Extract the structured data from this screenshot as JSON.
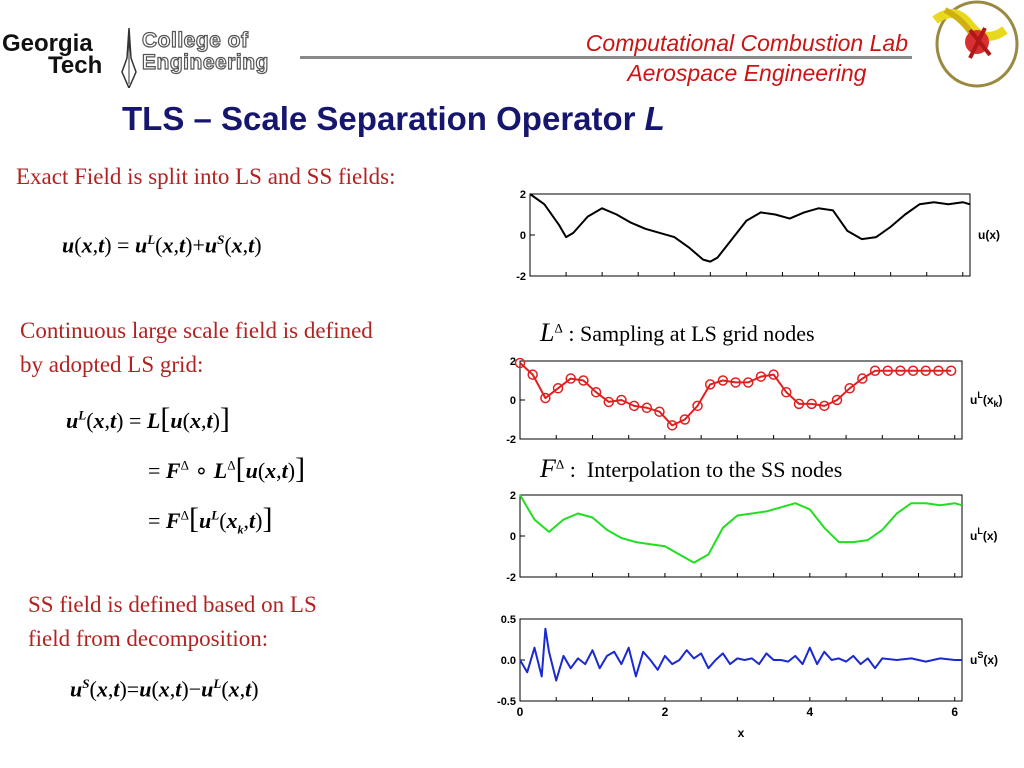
{
  "header": {
    "logo_georgia": "Georgia",
    "logo_tech": "Tech",
    "logo_college": "College of",
    "logo_engineering": "Engineering",
    "lab_line1": "Computational Combustion Lab",
    "lab_line2": "Aerospace Engineering"
  },
  "slide": {
    "title_main": "TLS – Scale Separation Operator ",
    "title_symbol": "L"
  },
  "left": {
    "text1": "Exact Field is split into LS and SS fields:",
    "text2_line1": "Continuous large scale field is defined",
    "text2_line2": "by adopted LS grid:",
    "text3_line1": "SS field is defined based on LS",
    "text3_line2": "field from decomposition:"
  },
  "operators": {
    "sampling_symbol": "L",
    "sampling_delta": "Δ",
    "sampling_label": "Sampling at LS grid nodes",
    "interp_symbol": "F",
    "interp_delta": "Δ",
    "interp_label": "Interpolation to the SS nodes"
  },
  "colors": {
    "red_text": "#b22222",
    "title_blue": "#16166e",
    "lab_red": "#cc1414",
    "series_black": "#000000",
    "series_red": "#e02020",
    "series_green": "#22dd22",
    "series_blue": "#1a2ad0"
  },
  "chart_data": [
    {
      "type": "line",
      "ylabel": "u(x)",
      "ylim": [
        -2,
        2
      ],
      "yticks": [
        "2",
        "0",
        "-2"
      ],
      "xlim": [
        0,
        6.1
      ],
      "x": [
        0,
        0.2,
        0.4,
        0.5,
        0.6,
        0.8,
        1.0,
        1.2,
        1.4,
        1.6,
        1.8,
        2.0,
        2.2,
        2.4,
        2.5,
        2.6,
        2.8,
        3.0,
        3.2,
        3.4,
        3.6,
        3.8,
        4.0,
        4.2,
        4.4,
        4.6,
        4.8,
        5.0,
        5.2,
        5.4,
        5.6,
        5.8,
        6.0,
        6.1
      ],
      "y": [
        2.0,
        1.5,
        0.5,
        -0.1,
        0.1,
        0.9,
        1.3,
        1.0,
        0.6,
        0.3,
        0.1,
        -0.1,
        -0.6,
        -1.2,
        -1.3,
        -1.1,
        -0.2,
        0.7,
        1.1,
        1.0,
        0.8,
        1.1,
        1.3,
        1.2,
        0.2,
        -0.2,
        -0.1,
        0.4,
        1.0,
        1.5,
        1.6,
        1.5,
        1.6,
        1.5
      ]
    },
    {
      "type": "line",
      "ylabel": "u",
      "ylabel_sup": "L",
      "ylabel_rest": "(x",
      "ylabel_sub": "k",
      "ylabel_end": ")",
      "ylim": [
        -2,
        2
      ],
      "yticks": [
        "2",
        "0",
        "-2"
      ],
      "xlim": [
        0,
        6.1
      ],
      "marker": "circle",
      "x": [
        0,
        0.175,
        0.35,
        0.525,
        0.7,
        0.875,
        1.05,
        1.225,
        1.4,
        1.575,
        1.75,
        1.925,
        2.1,
        2.275,
        2.45,
        2.625,
        2.8,
        2.975,
        3.15,
        3.325,
        3.5,
        3.675,
        3.85,
        4.025,
        4.2,
        4.375,
        4.55,
        4.725,
        4.9,
        5.075,
        5.25,
        5.425,
        5.6,
        5.775,
        5.95
      ],
      "y": [
        1.9,
        1.3,
        0.1,
        0.6,
        1.1,
        1.0,
        0.4,
        -0.1,
        0.0,
        -0.3,
        -0.4,
        -0.6,
        -1.3,
        -1.0,
        -0.3,
        0.8,
        1.0,
        0.9,
        0.9,
        1.2,
        1.3,
        0.4,
        -0.2,
        -0.2,
        -0.3,
        0.0,
        0.6,
        1.1,
        1.5,
        1.5,
        1.5,
        1.5,
        1.5,
        1.5,
        1.5
      ]
    },
    {
      "type": "line",
      "ylabel": "u",
      "ylabel_sup": "L",
      "ylabel_rest": "(x)",
      "ylim": [
        -2,
        2
      ],
      "yticks": [
        "2",
        "0",
        "-2"
      ],
      "xlim": [
        0,
        6.1
      ],
      "x": [
        0,
        0.2,
        0.4,
        0.6,
        0.8,
        1.0,
        1.2,
        1.4,
        1.6,
        1.8,
        2.0,
        2.2,
        2.4,
        2.6,
        2.8,
        3.0,
        3.2,
        3.4,
        3.6,
        3.8,
        4.0,
        4.2,
        4.4,
        4.6,
        4.8,
        5.0,
        5.2,
        5.4,
        5.6,
        5.8,
        6.0,
        6.1
      ],
      "y": [
        2.0,
        0.8,
        0.2,
        0.8,
        1.1,
        0.9,
        0.3,
        -0.1,
        -0.3,
        -0.4,
        -0.5,
        -0.9,
        -1.3,
        -0.9,
        0.4,
        1.0,
        1.1,
        1.2,
        1.4,
        1.6,
        1.3,
        0.4,
        -0.3,
        -0.3,
        -0.2,
        0.3,
        1.1,
        1.6,
        1.6,
        1.5,
        1.6,
        1.5
      ]
    },
    {
      "type": "line",
      "ylabel": "u",
      "ylabel_sup": "S",
      "ylabel_rest": "(x)",
      "xlabel": "x",
      "ylim": [
        -0.5,
        0.5
      ],
      "yticks": [
        "0.5",
        "0.0",
        "-0.5"
      ],
      "xticks": [
        "0",
        "2",
        "4",
        "6"
      ],
      "xlim": [
        0,
        6.1
      ],
      "x": [
        0,
        0.1,
        0.2,
        0.3,
        0.35,
        0.4,
        0.5,
        0.6,
        0.7,
        0.8,
        0.9,
        1.0,
        1.1,
        1.2,
        1.3,
        1.4,
        1.5,
        1.6,
        1.7,
        1.8,
        1.9,
        2.0,
        2.1,
        2.2,
        2.3,
        2.4,
        2.5,
        2.6,
        2.7,
        2.8,
        2.9,
        3.0,
        3.1,
        3.2,
        3.3,
        3.4,
        3.5,
        3.6,
        3.7,
        3.8,
        3.9,
        4.0,
        4.1,
        4.2,
        4.3,
        4.4,
        4.5,
        4.6,
        4.7,
        4.8,
        4.9,
        5.0,
        5.2,
        5.4,
        5.6,
        5.8,
        6.0,
        6.1
      ],
      "y": [
        0.0,
        -0.15,
        0.15,
        -0.2,
        0.38,
        0.1,
        -0.25,
        0.05,
        -0.1,
        0.02,
        -0.05,
        0.12,
        -0.1,
        0.05,
        0.1,
        -0.05,
        0.15,
        -0.2,
        0.1,
        0.0,
        -0.12,
        0.05,
        -0.05,
        0.0,
        0.12,
        0.02,
        0.08,
        -0.1,
        0.0,
        0.08,
        -0.05,
        0.02,
        0.0,
        0.02,
        -0.05,
        0.08,
        0.0,
        0.0,
        -0.02,
        0.05,
        -0.05,
        0.15,
        -0.05,
        0.1,
        0.0,
        0.02,
        -0.02,
        0.05,
        -0.05,
        0.02,
        -0.1,
        0.02,
        0.0,
        0.02,
        -0.02,
        0.02,
        0.0,
        0.0
      ]
    }
  ]
}
